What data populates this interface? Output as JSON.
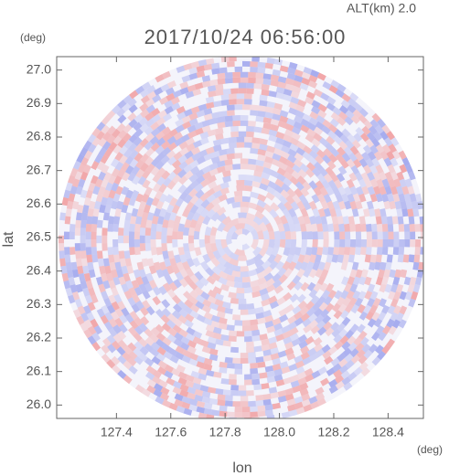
{
  "chart_data": {
    "type": "radar-ppi",
    "title": "2017/10/24 06:56:00",
    "subtitle": "ALT(km) 2.0",
    "x_label": "lon",
    "y_label": "lat",
    "x_unit": "(deg)",
    "y_unit": "(deg)",
    "xlim": [
      127.18,
      128.53
    ],
    "ylim": [
      25.96,
      27.04
    ],
    "xticks": [
      127.4,
      127.6,
      127.8,
      {
        "value": 128,
        "label": "128.0"
      },
      128.2,
      128.4
    ],
    "yticks": [
      {
        "value": 26,
        "label": "26.0"
      },
      26.1,
      26.2,
      26.3,
      26.4,
      26.5,
      26.6,
      26.7,
      26.8,
      26.9,
      {
        "value": 27,
        "label": "27.0"
      }
    ],
    "positive_color": "#f08080",
    "negative_color": "#8088e8"
  }
}
